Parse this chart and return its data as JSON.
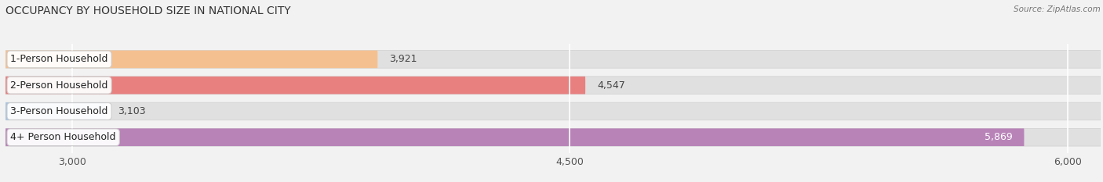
{
  "title": "OCCUPANCY BY HOUSEHOLD SIZE IN NATIONAL CITY",
  "source": "Source: ZipAtlas.com",
  "categories": [
    "1-Person Household",
    "2-Person Household",
    "3-Person Household",
    "4+ Person Household"
  ],
  "values": [
    3921,
    4547,
    3103,
    5869
  ],
  "bar_colors": [
    "#f5c090",
    "#e88080",
    "#a8c4e0",
    "#b884b8"
  ],
  "bar_edge_colors": [
    "#d4956a",
    "#c86060",
    "#7aaac8",
    "#9060a0"
  ],
  "value_colors": [
    "#555555",
    "#555555",
    "#555555",
    "#ffffff"
  ],
  "xlim_min": 2800,
  "xlim_max": 6100,
  "xstart": 2800,
  "xticks": [
    3000,
    4500,
    6000
  ],
  "xtick_labels": [
    "3,000",
    "4,500",
    "6,000"
  ],
  "background_color": "#f2f2f2",
  "bar_bg_color": "#e0e0e0",
  "title_fontsize": 10,
  "label_fontsize": 9,
  "value_fontsize": 9,
  "tick_fontsize": 9
}
